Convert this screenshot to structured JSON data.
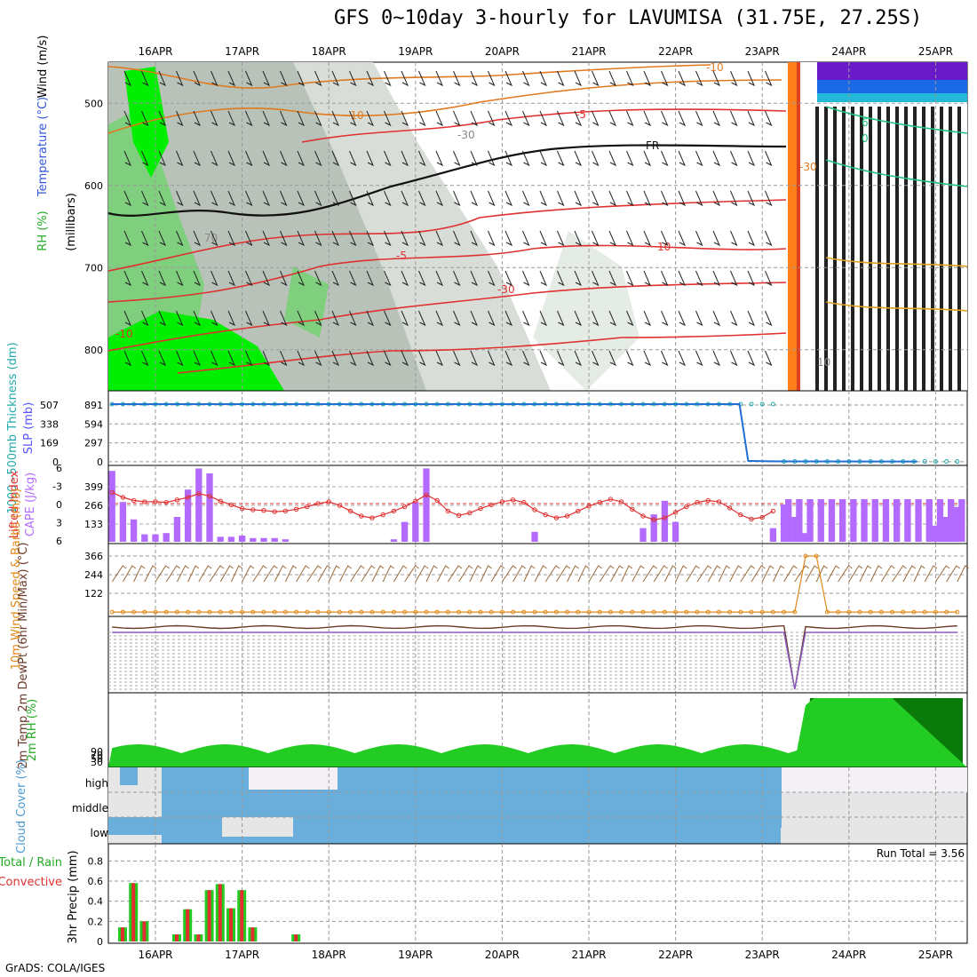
{
  "title": "GFS 0~10day 3-hourly for LAVUMISA (31.75E, 27.25S)",
  "footer": "GrADS: COLA/IGES",
  "run_total_label": "Run Total = 3.56",
  "dates": [
    "16APR",
    "17APR",
    "18APR",
    "19APR",
    "20APR",
    "21APR",
    "22APR",
    "23APR",
    "24APR",
    "25APR"
  ],
  "colors": {
    "rh_green": "#00ee00",
    "rh_gray": "#c9d0c9",
    "thickness": "#1e6fd6",
    "cape": "#b36bff",
    "lifted": "#e02020",
    "wind10": "#9b6a3a",
    "speed10": "#e0891a",
    "rh2m": "#0a7a0a",
    "cloud": "#6aaedb",
    "precip_total": "#22cc22",
    "precip_conv": "#e03030"
  },
  "chart_data": [
    {
      "type": "heatmap",
      "panel": "upper_air",
      "ylabels": {
        "rh": "RH (%)",
        "temp": "Temperature (°C)",
        "wind": "Wind (m/s)",
        "units": "(millibars)"
      },
      "ylevels": [
        500,
        600,
        700,
        800
      ],
      "contour_labels": [
        "-10",
        "-10",
        "-5",
        "-5",
        "-10",
        "-30",
        "-30",
        "FR",
        "-30",
        "10",
        "70",
        "6",
        "0",
        "10"
      ]
    },
    {
      "type": "line",
      "panel": "thickness_slp",
      "ylabel": "1000~500mb Thickness (dm)",
      "ylabel2": "SLP (mb)",
      "left_ticks": [
        "507",
        "338",
        "169",
        "0"
      ],
      "right_ticks": [
        "891",
        "594",
        "297",
        "0"
      ],
      "x_days": [
        0,
        1,
        2,
        3,
        4,
        5,
        6,
        7,
        7.25,
        7.35,
        7.6,
        8,
        9,
        9.3
      ],
      "values": [
        891,
        891,
        891,
        891,
        891,
        891,
        891,
        891,
        891,
        15,
        8,
        6,
        5,
        5
      ]
    },
    {
      "type": "bar",
      "panel": "cape_li",
      "ylabel": "Lifted Index",
      "ylabel2": "CAPE (J/kg)",
      "left_ticks": [
        "6",
        "-3",
        "0",
        "3",
        "6"
      ],
      "right_ticks": [
        "399",
        "266",
        "133"
      ],
      "cape_values": [
        570,
        320,
        180,
        60,
        60,
        70,
        200,
        420,
        590,
        550,
        40,
        40,
        50,
        30,
        30,
        30,
        20,
        0,
        0,
        0,
        0,
        0,
        0,
        0,
        0,
        0,
        20,
        160,
        320,
        590,
        0,
        0,
        0,
        0,
        0,
        0,
        0,
        0,
        0,
        80,
        0,
        0,
        0,
        0,
        0,
        0,
        0,
        0,
        0,
        110,
        220,
        330,
        160,
        0,
        0,
        0,
        0,
        0,
        0,
        0,
        0,
        110,
        300,
        200,
        70,
        0,
        0,
        0,
        0,
        0,
        0,
        0,
        0,
        0,
        0,
        0,
        130,
        200,
        280,
        140,
        0,
        0,
        0,
        0,
        0,
        0,
        0,
        0,
        0,
        0,
        0,
        0,
        0,
        60,
        200,
        280,
        150,
        0,
        0,
        0,
        0,
        0,
        0,
        0,
        0,
        0,
        0,
        0,
        0,
        0,
        0,
        0,
        0,
        0,
        0,
        0,
        0,
        0,
        0,
        0
      ],
      "li_values": [
        -1.8,
        -1.0,
        -0.5,
        -0.3,
        -0.3,
        -0.2,
        -0.6,
        -1.0,
        -1.6,
        -1.2,
        -0.4,
        0.2,
        0.8,
        1.0,
        1.1,
        1.3,
        1.2,
        0.9,
        0.5,
        0.0,
        -0.3,
        0.3,
        1.2,
        2.0,
        2.3,
        1.8,
        1.2,
        0.5,
        -0.4,
        -1.4,
        -0.5,
        1.2,
        1.9,
        1.5,
        0.8,
        0.2,
        -0.3,
        -0.6,
        -0.2,
        1.0,
        1.8,
        2.3,
        2.0,
        1.2,
        0.4,
        -0.2,
        -0.7,
        -0.3,
        0.9,
        2.0,
        2.6,
        2.3,
        1.4,
        0.5,
        -0.2,
        -0.5,
        -0.3,
        0.7,
        1.8,
        2.5,
        2.2,
        1.2,
        0.3,
        -0.5,
        -0.8,
        -0.2,
        0.9,
        1.9,
        2.5,
        2.4,
        1.3,
        0.4,
        -0.3,
        -0.6,
        -0.3,
        0.5,
        1.5,
        2.3,
        2.5,
        1.8,
        1.0,
        0.3,
        -0.3,
        -0.6,
        -0.1,
        0.8,
        1.6,
        2.2,
        1.5,
        0.7,
        0.1,
        -0.3,
        0.0,
        0.5,
        1.5,
        2.5,
        2.8,
        3.0,
        3.2
      ]
    },
    {
      "type": "line",
      "panel": "wind10m",
      "ylabel": "10m Wind Speed & Barbs (m/s)",
      "right_ticks": [
        "366",
        "244",
        "122"
      ],
      "speed_late_peak": 366
    },
    {
      "type": "line",
      "panel": "temp2m",
      "ylabel": "2m Temp 2m DewPt (6hr Min/Max) (°C)"
    },
    {
      "type": "area",
      "panel": "rh2m",
      "ylabel": "2m RH (%)",
      "left_ticks": [
        "90",
        "70",
        "50",
        "30"
      ],
      "late_value": 100
    },
    {
      "type": "bar",
      "panel": "cloud",
      "ylabel": "Cloud Cover (%)",
      "levels": [
        "high",
        "middle",
        "low"
      ]
    },
    {
      "type": "bar",
      "panel": "precip",
      "ylabel": "3hr Precip (mm)",
      "legend": [
        "Total / Rain",
        "Convective"
      ],
      "ylim": [
        0,
        0.9
      ],
      "yticks": [
        "0.8",
        "0.6",
        "0.4",
        "0.2",
        "0"
      ],
      "x_days": [
        0.0,
        0.125,
        0.25,
        0.625,
        0.75,
        0.875,
        1.0,
        1.125,
        1.25,
        1.375,
        1.5,
        2.0
      ],
      "values": [
        0.14,
        0.58,
        0.2,
        0.07,
        0.32,
        0.07,
        0.51,
        0.57,
        0.33,
        0.51,
        0.14,
        0.07
      ]
    }
  ]
}
